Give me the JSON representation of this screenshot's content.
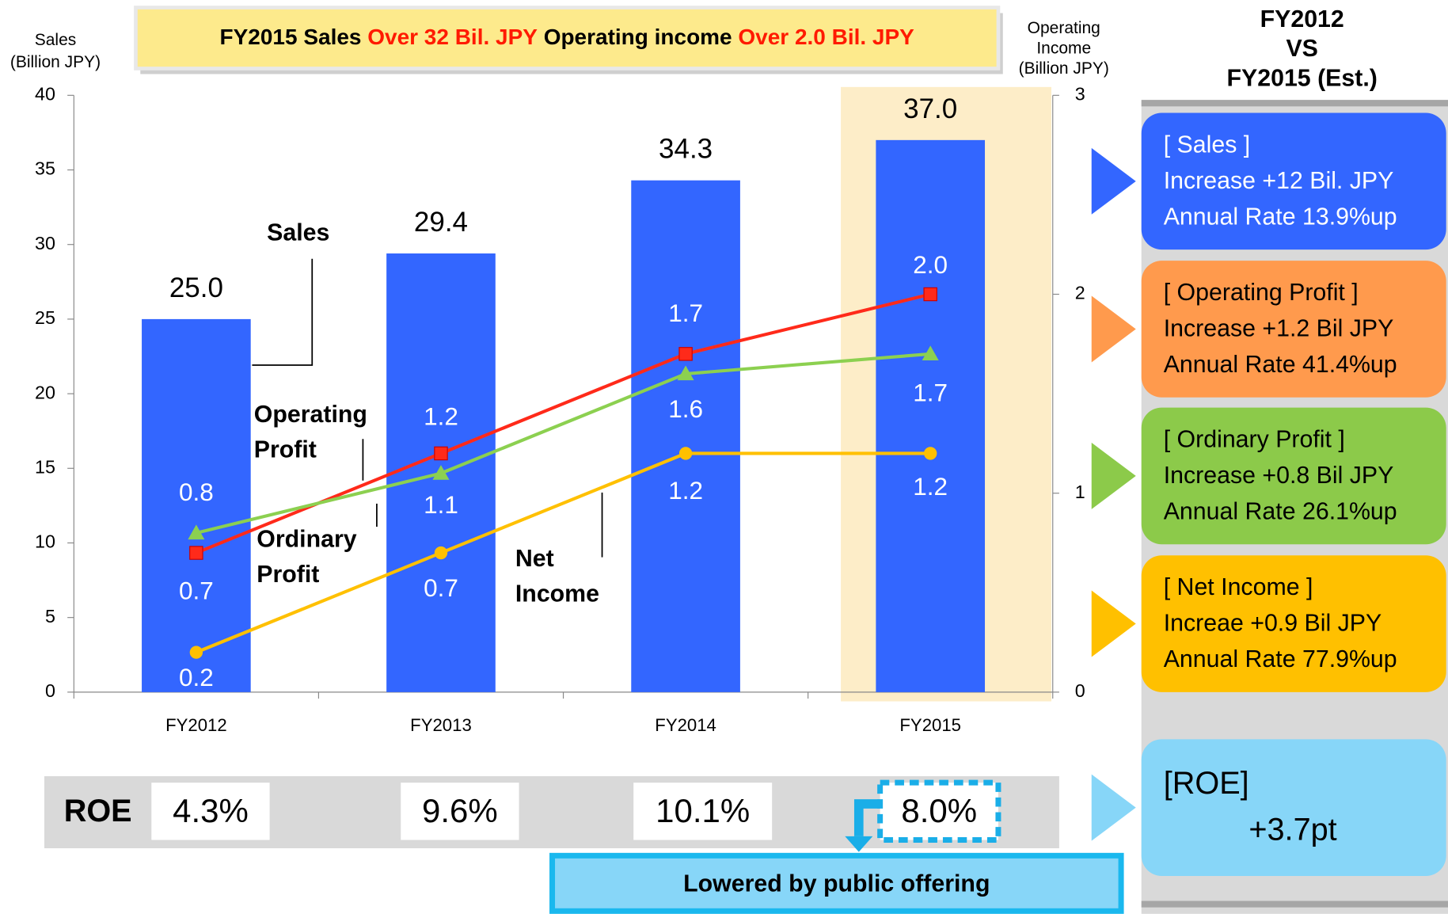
{
  "chart_data": {
    "type": "bar",
    "banner": [
      "FY2015  Sales ",
      "Over 32 Bil. JPY",
      "   Operating income ",
      "Over 2.0 Bil. JPY"
    ],
    "y_label": [
      "Sales",
      "(Billion JPY)"
    ],
    "y2_label": [
      "Operating",
      "Income",
      "(Billion JPY)"
    ],
    "categories": [
      "FY2012",
      "FY2013",
      "FY2014",
      "FY2015"
    ],
    "highlight": "FY2015",
    "ylim": [
      0,
      40
    ],
    "yticks": [
      0,
      5,
      10,
      15,
      20,
      25,
      30,
      35,
      40
    ],
    "y2lim": [
      0,
      3
    ],
    "y2ticks": [
      0,
      1,
      2,
      3
    ],
    "series": [
      {
        "name": "Sales",
        "color": "#3366ff",
        "values": [
          25.0,
          29.4,
          34.3,
          37.0
        ],
        "value_labels": [
          "25.0",
          "29.4",
          "34.3",
          "37.0"
        ]
      },
      {
        "name": "Operating Profit",
        "color": "#ff2a1a",
        "axis": "y2",
        "marker": "square",
        "values": [
          0.7,
          1.2,
          1.7,
          2.0
        ],
        "value_labels": [
          "0.7",
          "1.2",
          "1.7",
          "2.0"
        ]
      },
      {
        "name": "Ordinary Profit",
        "color": "#8cd050",
        "axis": "y2",
        "marker": "triangle",
        "values": [
          0.8,
          1.1,
          1.6,
          1.7
        ],
        "value_labels": [
          "0.8",
          "1.1",
          "1.6",
          "1.7"
        ]
      },
      {
        "name": "Net Income",
        "color": "#ffc000",
        "axis": "y2",
        "marker": "circle",
        "values": [
          0.2,
          0.7,
          1.2,
          1.2
        ],
        "value_labels": [
          "0.2",
          "0.7",
          "1.2",
          "1.2"
        ]
      }
    ],
    "roe": {
      "label": "ROE",
      "values": [
        4.3,
        9.6,
        10.1,
        8.0
      ],
      "value_labels": [
        "4.3%",
        "9.6%",
        "10.1%",
        "8.0%"
      ],
      "note": "Lowered by public offering"
    },
    "panel": {
      "title": [
        "FY2012",
        "VS",
        "FY2015 (Est.)"
      ],
      "cards": [
        {
          "color": "#3366ff",
          "lines": [
            "[ Sales ]",
            "Increase +12 Bil. JPY",
            "Annual Rate 13.9%up"
          ]
        },
        {
          "color": "#ff9a4d",
          "lines": [
            "[ Operating Profit ]",
            "Increase    +1.2 Bil JPY",
            "Annual Rate 41.4%up"
          ]
        },
        {
          "color": "#8cca4a",
          "lines": [
            "[ Ordinary Profit ]",
            "Increase    +0.8 Bil JPY",
            "Annual Rate 26.1%up"
          ]
        },
        {
          "color": "#ffc000",
          "lines": [
            "[ Net Income ]",
            "Increae    +0.9 Bil JPY",
            "Annual Rate 77.9%up"
          ]
        },
        {
          "color": "#87d6f8",
          "lines": [
            "[ROE]",
            "+3.7pt"
          ]
        }
      ]
    }
  }
}
